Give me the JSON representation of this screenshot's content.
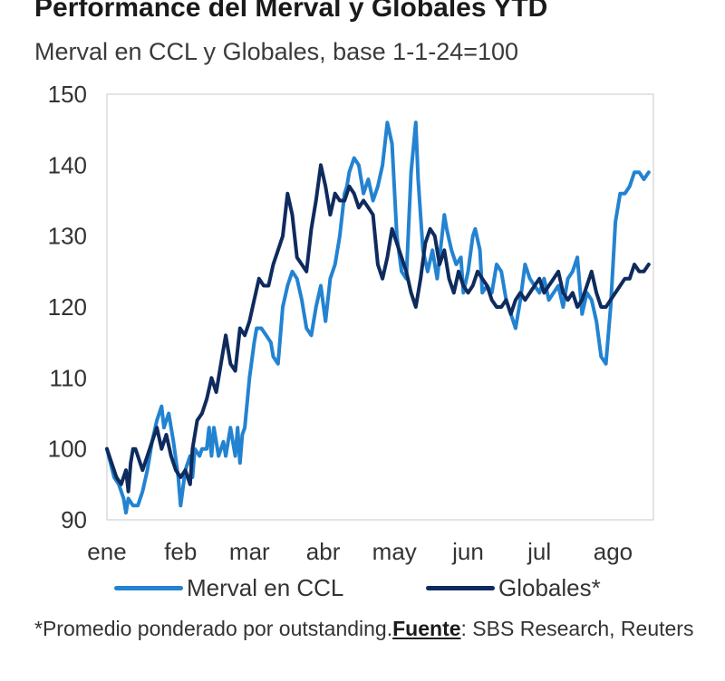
{
  "chart_data": {
    "type": "line",
    "title": "Performance del Merval y Globales YTD",
    "subtitle": "Merval en CCL y Globales, base 1-1-24=100",
    "xlabel": "",
    "ylabel": "",
    "ylim": [
      90,
      150
    ],
    "yticks": [
      90,
      100,
      110,
      120,
      130,
      140,
      150
    ],
    "xlim": [
      0,
      230
    ],
    "x_tick_labels": [
      "ene",
      "feb",
      "mar",
      "abr",
      "may",
      "jun",
      "jul",
      "ago"
    ],
    "x_tick_positions": [
      0,
      31,
      60,
      91,
      121,
      152,
      182,
      213
    ],
    "grid": false,
    "series": [
      {
        "name": "Merval en CCL",
        "color": "#2383d1",
        "x": [
          0,
          3,
          5,
          7,
          8,
          9,
          11,
          13,
          15,
          17,
          19,
          21,
          23,
          24,
          25,
          26,
          27,
          28,
          30,
          31,
          33,
          35,
          36,
          37,
          39,
          40,
          42,
          43,
          44,
          45,
          47,
          49,
          50,
          51,
          52,
          54,
          55,
          56,
          57,
          58,
          60,
          62,
          63,
          65,
          67,
          69,
          70,
          72,
          74,
          76,
          78,
          80,
          82,
          83,
          84,
          86,
          88,
          90,
          92,
          94,
          96,
          98,
          100,
          101,
          102,
          104,
          106,
          108,
          110,
          112,
          114,
          116,
          118,
          120,
          122,
          124,
          126,
          128,
          130,
          131,
          133,
          135,
          137,
          139,
          141,
          142,
          143,
          145,
          147,
          149,
          150,
          152,
          154,
          155,
          157,
          158,
          160,
          162,
          164,
          166,
          168,
          170,
          172,
          174,
          176,
          178,
          180,
          182,
          184,
          186,
          188,
          190,
          192,
          194,
          196,
          198,
          200,
          202,
          204,
          206,
          208,
          210,
          212,
          214,
          216,
          218,
          220,
          222,
          224,
          226,
          228
        ],
        "values": [
          100,
          96,
          95,
          93,
          91,
          93,
          92,
          92,
          94,
          97,
          101,
          104,
          106,
          103,
          104,
          105,
          103,
          101,
          96,
          92,
          97,
          99,
          96,
          100,
          99,
          100,
          100,
          103,
          99,
          103,
          99,
          101,
          99,
          101,
          103,
          99,
          103,
          98,
          102,
          103,
          110,
          115,
          117,
          117,
          116,
          115,
          113,
          112,
          120,
          123,
          125,
          124,
          121,
          119,
          117,
          116,
          120,
          123,
          118,
          124,
          126,
          130,
          136,
          137,
          139,
          141,
          140,
          136,
          138,
          135,
          137,
          140,
          146,
          143,
          130,
          125,
          124,
          139,
          146,
          138,
          128,
          125,
          128,
          124,
          130,
          133,
          131,
          128,
          126,
          127,
          122,
          125,
          130,
          131,
          128,
          122,
          123,
          122,
          126,
          125,
          121,
          119,
          117,
          121,
          126,
          124,
          123,
          122,
          124,
          121,
          122,
          123,
          120,
          124,
          125,
          127,
          119,
          122,
          121,
          118,
          113,
          112,
          120,
          132,
          136,
          136,
          137,
          139,
          139,
          138,
          139
        ],
        "approximate": true
      },
      {
        "name": "Globales*",
        "color": "#0f2b5e",
        "x": [
          0,
          2,
          4,
          6,
          8,
          9,
          10,
          11,
          12,
          13,
          15,
          17,
          19,
          21,
          23,
          25,
          27,
          29,
          31,
          33,
          35,
          36,
          38,
          40,
          42,
          44,
          46,
          48,
          50,
          52,
          54,
          56,
          58,
          60,
          62,
          64,
          66,
          68,
          70,
          72,
          74,
          76,
          78,
          80,
          82,
          84,
          86,
          88,
          90,
          92,
          94,
          96,
          98,
          100,
          102,
          104,
          106,
          108,
          110,
          112,
          114,
          116,
          118,
          120,
          122,
          124,
          126,
          128,
          130,
          132,
          134,
          136,
          138,
          140,
          142,
          144,
          146,
          148,
          150,
          152,
          154,
          156,
          158,
          160,
          162,
          164,
          166,
          168,
          170,
          172,
          174,
          176,
          178,
          180,
          182,
          184,
          186,
          188,
          190,
          192,
          194,
          196,
          198,
          200,
          202,
          204,
          206,
          208,
          210,
          212,
          214,
          216,
          218,
          220,
          222,
          224,
          226,
          228
        ],
        "values": [
          100,
          98,
          96,
          95,
          97,
          94,
          98,
          100,
          100,
          99,
          97,
          99,
          101,
          103,
          100,
          102,
          99,
          97,
          96,
          97,
          95,
          100,
          104,
          105,
          107,
          110,
          108,
          112,
          116,
          112,
          111,
          117,
          116,
          118,
          121,
          124,
          123,
          123,
          126,
          128,
          130,
          136,
          133,
          127,
          126,
          125,
          131,
          135,
          140,
          137,
          133,
          136,
          135,
          135,
          137,
          136,
          134,
          135,
          134,
          133,
          126,
          124,
          127,
          131,
          129,
          127,
          125,
          122,
          120,
          124,
          129,
          131,
          130,
          126,
          128,
          124,
          122,
          125,
          123,
          122,
          123,
          125,
          124,
          123,
          121,
          120,
          120,
          121,
          119,
          121,
          122,
          121,
          122,
          123,
          124,
          122,
          123,
          124,
          125,
          122,
          121,
          122,
          120,
          121,
          123,
          125,
          122,
          120,
          120,
          121,
          122,
          123,
          124,
          124,
          126,
          125,
          125,
          126
        ],
        "approximate": true
      }
    ]
  },
  "legend": {
    "items": [
      {
        "label": "Merval en CCL",
        "color": "#2383d1"
      },
      {
        "label": "Globales*",
        "color": "#0f2b5e"
      }
    ]
  },
  "footnote": {
    "prefix": "*Promedio ponderado por outstanding.",
    "source_label": "Fuente",
    "suffix": ": SBS Research, Reuters"
  }
}
